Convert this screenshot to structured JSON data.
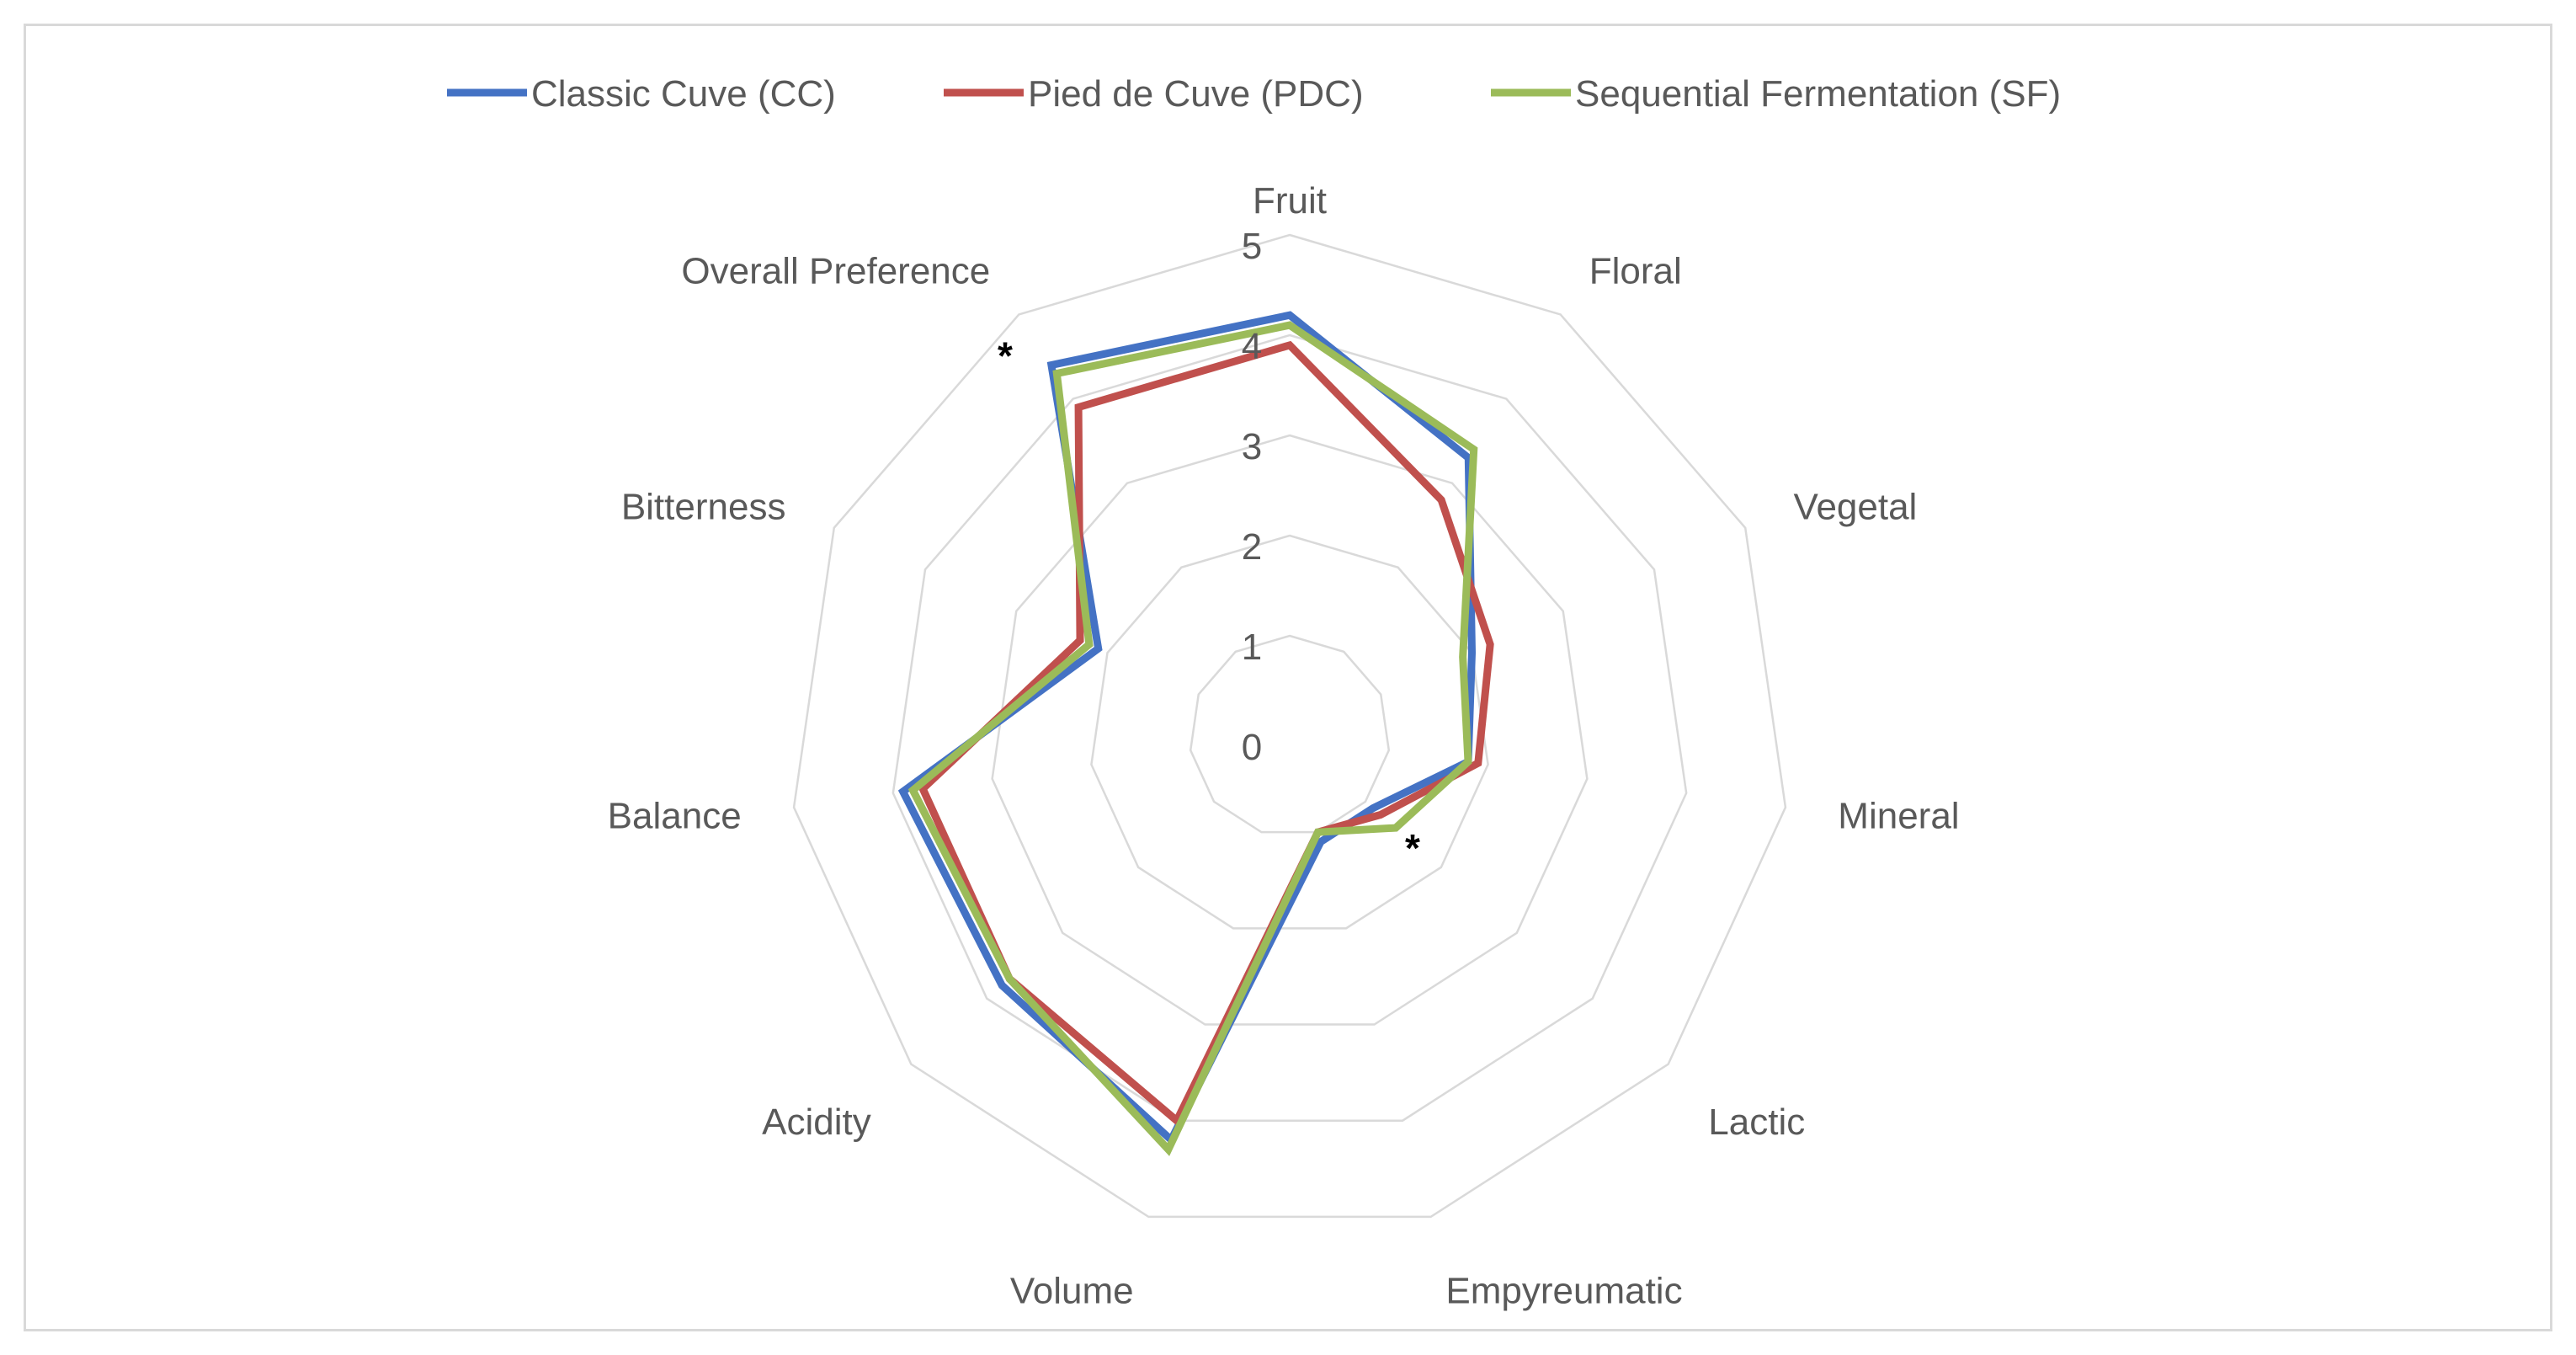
{
  "chart_data": {
    "type": "radar",
    "categories": [
      "Fruit",
      "Floral",
      "Vegetal",
      "Mineral",
      "Lactic",
      "Empyreumatic",
      "Volume",
      "Acidity",
      "Balance",
      "Bitterness",
      "Overall Preference"
    ],
    "rlim": [
      0,
      5
    ],
    "ticks": [
      "0",
      "1",
      "2",
      "3",
      "4",
      "5"
    ],
    "grid": true,
    "legend_position": "top",
    "series": [
      {
        "name": "Classic Cuve (CC)",
        "color": "#4472c4",
        "values": [
          4.2,
          3.3,
          2.0,
          1.8,
          1.1,
          1.1,
          4.2,
          3.8,
          3.9,
          2.1,
          4.4
        ]
      },
      {
        "name": "Pied de Cuve (PDC)",
        "color": "#c0504d",
        "values": [
          3.9,
          2.8,
          2.2,
          1.9,
          1.2,
          1.0,
          4.0,
          3.7,
          3.7,
          2.3,
          3.9
        ]
      },
      {
        "name": "Sequential Fermentation (SF)",
        "color": "#9bbb59",
        "values": [
          4.1,
          3.4,
          1.9,
          1.8,
          1.4,
          1.0,
          4.3,
          3.7,
          3.8,
          2.2,
          4.3
        ]
      }
    ],
    "annotations": [
      {
        "text": "*",
        "category": "Overall Preference"
      },
      {
        "text": "*",
        "category": "Lactic"
      }
    ]
  }
}
